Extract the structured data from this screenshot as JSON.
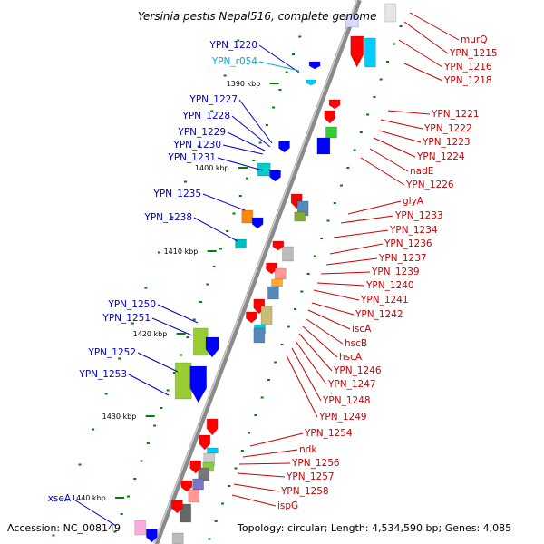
{
  "title": "Yersinia pestis Nepal516, complete genome",
  "footer": {
    "accession": "Accession: NC_008149",
    "topology": "Topology: circular; Length: 4,534,590 bp; Genes: 4,085"
  },
  "colors": {
    "backbone": "#808080",
    "forward_red": "#ff0000",
    "reverse_blue": "#0000ff",
    "rna_cyan": "#00ccff",
    "tick_green": "#008000",
    "left_label": "#0000cc",
    "left_label_rna": "#00aadd",
    "right_label": "#cc0000"
  },
  "kbp_ticks": [
    "1390 kbp",
    "1400 kbp",
    "1410 kbp",
    "1420 kbp",
    "1430 kbp",
    "1440 kbp"
  ],
  "left_labels": [
    {
      "text": "YPN_1220",
      "rna": false
    },
    {
      "text": "YPN_r054",
      "rna": true
    },
    {
      "text": "YPN_1227",
      "rna": false
    },
    {
      "text": "YPN_1228",
      "rna": false
    },
    {
      "text": "YPN_1229",
      "rna": false
    },
    {
      "text": "YPN_1230",
      "rna": false
    },
    {
      "text": "YPN_1231",
      "rna": false
    },
    {
      "text": "YPN_1235",
      "rna": false
    },
    {
      "text": "YPN_1238",
      "rna": false
    },
    {
      "text": "YPN_1250",
      "rna": false
    },
    {
      "text": "YPN_1251",
      "rna": false
    },
    {
      "text": "YPN_1252",
      "rna": false
    },
    {
      "text": "YPN_1253",
      "rna": false
    },
    {
      "text": "xseA",
      "rna": false
    }
  ],
  "right_labels": [
    "murQ",
    "YPN_1215",
    "YPN_1216",
    "YPN_1218",
    "YPN_1221",
    "YPN_1222",
    "YPN_1223",
    "YPN_1224",
    "nadE",
    "YPN_1226",
    "glyA",
    "YPN_1233",
    "YPN_1234",
    "YPN_1236",
    "YPN_1237",
    "YPN_1239",
    "YPN_1240",
    "YPN_1241",
    "YPN_1242",
    "iscA",
    "hscB",
    "hscA",
    "YPN_1246",
    "YPN_1247",
    "YPN_1248",
    "YPN_1249",
    "YPN_1254",
    "ndk",
    "YPN_1256",
    "YPN_1257",
    "YPN_1258",
    "ispG"
  ]
}
